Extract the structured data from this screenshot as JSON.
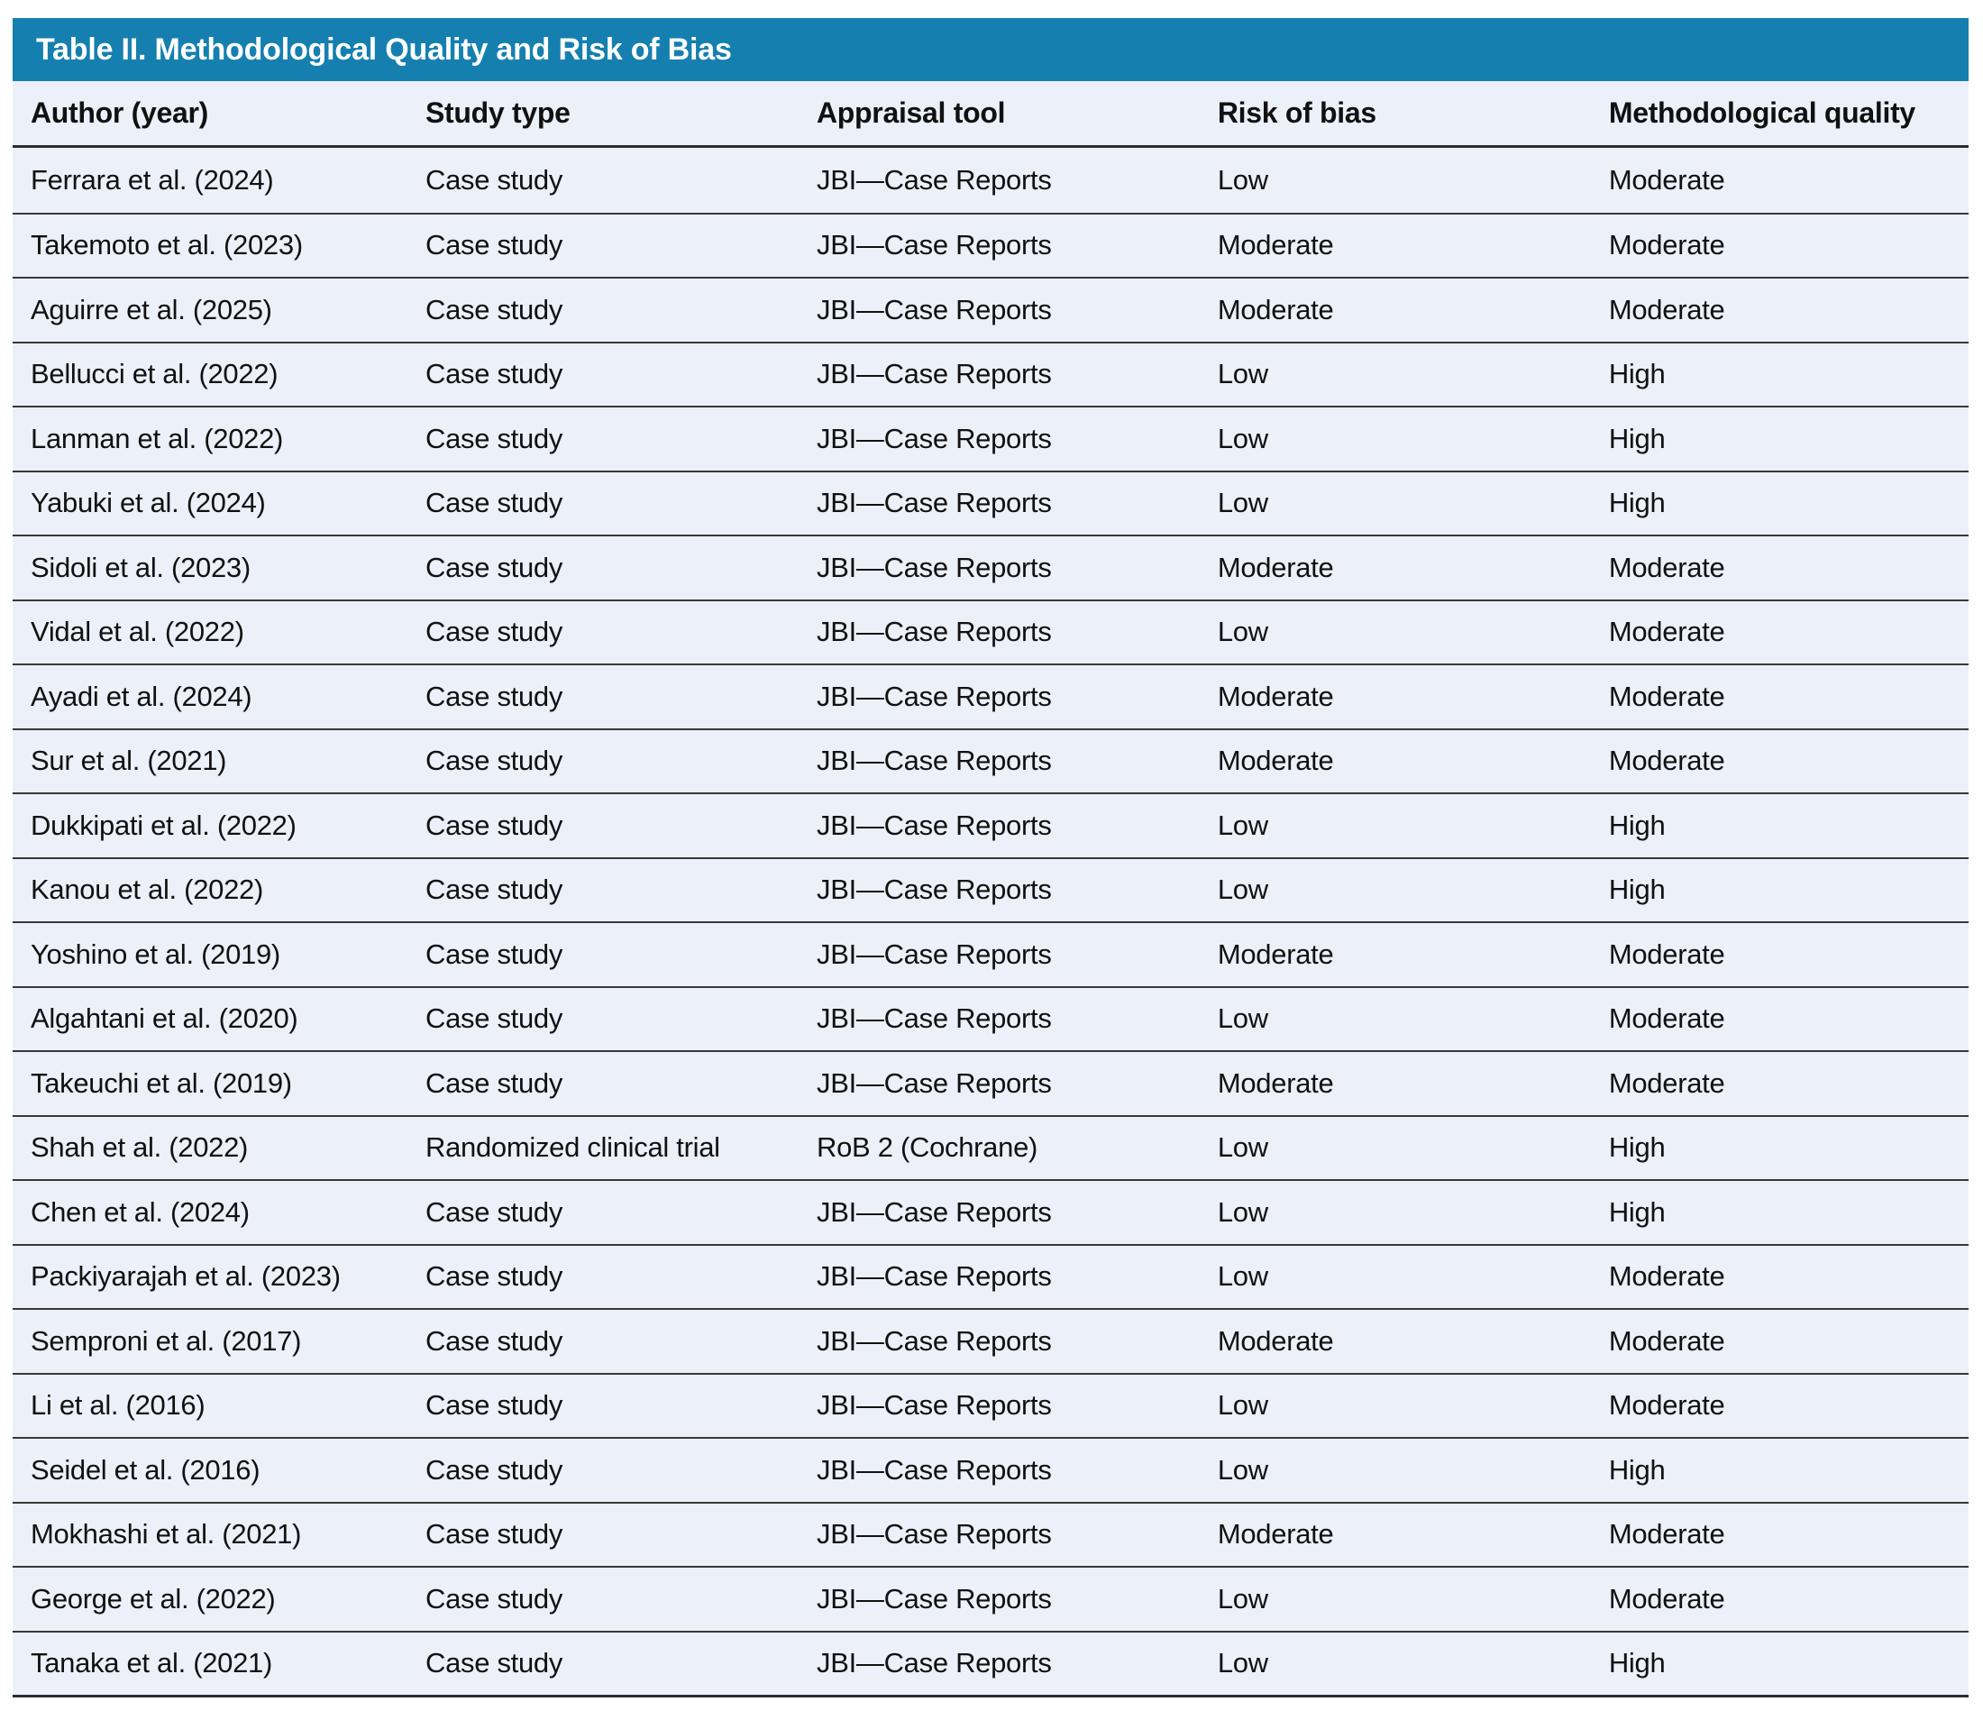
{
  "table": {
    "title": "Table II. Methodological Quality and Risk of Bias",
    "colors": {
      "header_bar": "#1580b0",
      "row_bg": "#ecf0f8",
      "divider": "#383838",
      "title_text": "#ffffff",
      "body_text": "#111111"
    },
    "columns": [
      {
        "key": "author",
        "label": "Author (year)"
      },
      {
        "key": "study_type",
        "label": "Study type"
      },
      {
        "key": "appraisal_tool",
        "label": "Appraisal tool"
      },
      {
        "key": "risk_of_bias",
        "label": "Risk of bias"
      },
      {
        "key": "methodological_quality",
        "label": "Methodological quality"
      }
    ],
    "rows": [
      {
        "author": "Ferrara et al. (2024)",
        "study_type": "Case study",
        "appraisal_tool": "JBI—Case Reports",
        "risk_of_bias": "Low",
        "methodological_quality": "Moderate"
      },
      {
        "author": "Takemoto et al. (2023)",
        "study_type": "Case study",
        "appraisal_tool": "JBI—Case Reports",
        "risk_of_bias": "Moderate",
        "methodological_quality": "Moderate"
      },
      {
        "author": "Aguirre et al. (2025)",
        "study_type": "Case study",
        "appraisal_tool": "JBI—Case Reports",
        "risk_of_bias": "Moderate",
        "methodological_quality": "Moderate"
      },
      {
        "author": "Bellucci et al. (2022)",
        "study_type": "Case study",
        "appraisal_tool": "JBI—Case Reports",
        "risk_of_bias": "Low",
        "methodological_quality": "High"
      },
      {
        "author": "Lanman et al. (2022)",
        "study_type": "Case study",
        "appraisal_tool": "JBI—Case Reports",
        "risk_of_bias": "Low",
        "methodological_quality": "High"
      },
      {
        "author": "Yabuki et al. (2024)",
        "study_type": "Case study",
        "appraisal_tool": "JBI—Case Reports",
        "risk_of_bias": "Low",
        "methodological_quality": "High"
      },
      {
        "author": "Sidoli et al. (2023)",
        "study_type": "Case study",
        "appraisal_tool": "JBI—Case Reports",
        "risk_of_bias": "Moderate",
        "methodological_quality": "Moderate"
      },
      {
        "author": "Vidal et al. (2022)",
        "study_type": "Case study",
        "appraisal_tool": "JBI—Case Reports",
        "risk_of_bias": "Low",
        "methodological_quality": "Moderate"
      },
      {
        "author": "Ayadi et al. (2024)",
        "study_type": "Case study",
        "appraisal_tool": "JBI—Case Reports",
        "risk_of_bias": "Moderate",
        "methodological_quality": "Moderate"
      },
      {
        "author": "Sur et al. (2021)",
        "study_type": "Case study",
        "appraisal_tool": "JBI—Case Reports",
        "risk_of_bias": "Moderate",
        "methodological_quality": "Moderate"
      },
      {
        "author": "Dukkipati et al. (2022)",
        "study_type": "Case study",
        "appraisal_tool": "JBI—Case Reports",
        "risk_of_bias": "Low",
        "methodological_quality": "High"
      },
      {
        "author": "Kanou et al. (2022)",
        "study_type": "Case study",
        "appraisal_tool": "JBI—Case Reports",
        "risk_of_bias": "Low",
        "methodological_quality": "High"
      },
      {
        "author": "Yoshino et al. (2019)",
        "study_type": "Case study",
        "appraisal_tool": "JBI—Case Reports",
        "risk_of_bias": "Moderate",
        "methodological_quality": "Moderate"
      },
      {
        "author": "Algahtani et al. (2020)",
        "study_type": "Case study",
        "appraisal_tool": "JBI—Case Reports",
        "risk_of_bias": "Low",
        "methodological_quality": "Moderate"
      },
      {
        "author": "Takeuchi et al. (2019)",
        "study_type": "Case study",
        "appraisal_tool": "JBI—Case Reports",
        "risk_of_bias": "Moderate",
        "methodological_quality": "Moderate"
      },
      {
        "author": "Shah et al. (2022)",
        "study_type": "Randomized clinical trial",
        "appraisal_tool": "RoB 2 (Cochrane)",
        "risk_of_bias": "Low",
        "methodological_quality": "High"
      },
      {
        "author": "Chen et al. (2024)",
        "study_type": "Case study",
        "appraisal_tool": "JBI—Case Reports",
        "risk_of_bias": "Low",
        "methodological_quality": "High"
      },
      {
        "author": "Packiyarajah et al. (2023)",
        "study_type": "Case study",
        "appraisal_tool": "JBI—Case Reports",
        "risk_of_bias": "Low",
        "methodological_quality": "Moderate"
      },
      {
        "author": "Semproni et al. (2017)",
        "study_type": "Case study",
        "appraisal_tool": "JBI—Case Reports",
        "risk_of_bias": "Moderate",
        "methodological_quality": "Moderate"
      },
      {
        "author": "Li et al. (2016)",
        "study_type": "Case study",
        "appraisal_tool": "JBI—Case Reports",
        "risk_of_bias": "Low",
        "methodological_quality": "Moderate"
      },
      {
        "author": "Seidel et al. (2016)",
        "study_type": "Case study",
        "appraisal_tool": "JBI—Case Reports",
        "risk_of_bias": "Low",
        "methodological_quality": "High"
      },
      {
        "author": "Mokhashi et al. (2021)",
        "study_type": "Case study",
        "appraisal_tool": "JBI—Case Reports",
        "risk_of_bias": "Moderate",
        "methodological_quality": "Moderate"
      },
      {
        "author": "George et al. (2022)",
        "study_type": "Case study",
        "appraisal_tool": "JBI—Case Reports",
        "risk_of_bias": "Low",
        "methodological_quality": "Moderate"
      },
      {
        "author": "Tanaka et al. (2021)",
        "study_type": "Case study",
        "appraisal_tool": "JBI—Case Reports",
        "risk_of_bias": "Low",
        "methodological_quality": "High"
      }
    ]
  }
}
